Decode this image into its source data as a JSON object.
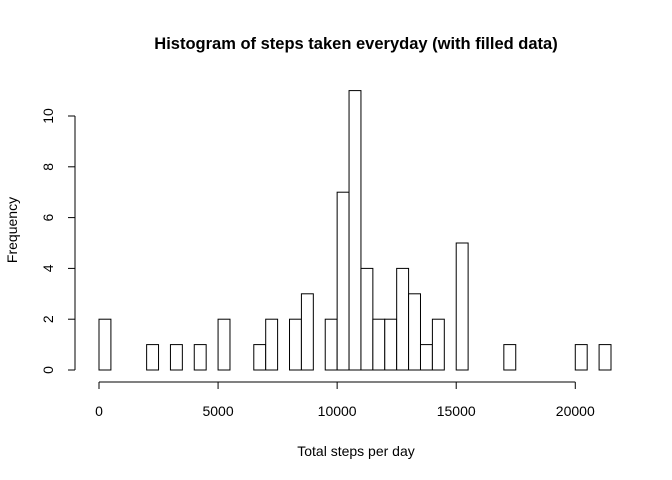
{
  "chart_data": {
    "type": "bar",
    "title": "Histogram of steps taken everyday (with filled data)",
    "xlabel": "Total steps per day",
    "ylabel": "Frequency",
    "bin_width": 500,
    "bin_start": 0,
    "xlim": [
      0,
      21500
    ],
    "ylim": [
      0,
      11
    ],
    "x_ticks": [
      0,
      5000,
      10000,
      15000,
      20000
    ],
    "y_ticks": [
      0,
      2,
      4,
      6,
      8,
      10
    ],
    "values": [
      2,
      0,
      0,
      0,
      1,
      0,
      1,
      0,
      1,
      0,
      2,
      0,
      0,
      1,
      2,
      0,
      2,
      3,
      0,
      2,
      7,
      11,
      4,
      2,
      2,
      4,
      3,
      1,
      2,
      0,
      5,
      0,
      0,
      0,
      1,
      0,
      0,
      0,
      0,
      0,
      1,
      0,
      1
    ],
    "bar_fill": "#ffffff",
    "bar_stroke": "#000000",
    "grid": false
  }
}
